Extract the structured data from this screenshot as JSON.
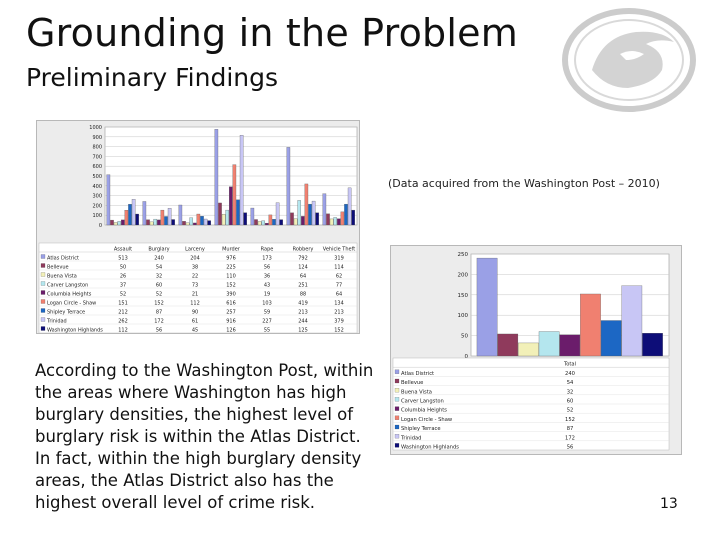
{
  "slide": {
    "title": "Grounding in the Problem",
    "subtitle": "Preliminary Findings",
    "source_note": "(Data acquired from the Washington Post – 2010)",
    "body": "According to the Washington Post, within the areas where Washington has high burglary densities, the highest level of burglary risk is within the Atlas District. In fact, within the high burglary density areas, the Atlas District also has the highest overall level of crime risk.",
    "page_number": "13"
  },
  "colors": {
    "neighborhoods": [
      "#9aa0e6",
      "#8f3a5c",
      "#f2f0b8",
      "#b4e6ee",
      "#6b1c6b",
      "#f08070",
      "#1c67c4",
      "#c8c6f5",
      "#0d0d78"
    ]
  },
  "chart_data": [
    {
      "type": "bar",
      "categories": [
        "Assault",
        "Burglary",
        "Larceny",
        "Murder",
        "Rape",
        "Robbery",
        "Vehicle Theft"
      ],
      "ylim": [
        0,
        1000
      ],
      "yticks": [
        0,
        100,
        200,
        300,
        400,
        500,
        600,
        700,
        800,
        900,
        1000
      ],
      "series": [
        {
          "name": "Atlas District",
          "values": [
            513,
            240,
            204,
            976,
            173,
            792,
            319
          ]
        },
        {
          "name": "Bellevue",
          "values": [
            50,
            54,
            38,
            225,
            56,
            124,
            114
          ]
        },
        {
          "name": "Buena Vista",
          "values": [
            26,
            32,
            22,
            110,
            36,
            64,
            62
          ]
        },
        {
          "name": "Carver Langston",
          "values": [
            37,
            60,
            73,
            152,
            43,
            251,
            77
          ]
        },
        {
          "name": "Columbia Heights",
          "values": [
            52,
            52,
            21,
            390,
            19,
            88,
            64
          ]
        },
        {
          "name": "Logan Circle - Shaw",
          "values": [
            151,
            152,
            112,
            616,
            103,
            419,
            134
          ]
        },
        {
          "name": "Shipley Terrace",
          "values": [
            212,
            87,
            90,
            257,
            59,
            213,
            213
          ]
        },
        {
          "name": "Trinidad",
          "values": [
            262,
            172,
            61,
            916,
            227,
            244,
            379
          ]
        },
        {
          "name": "Washington Highlands",
          "values": [
            112,
            56,
            45,
            126,
            55,
            125,
            152
          ]
        }
      ]
    },
    {
      "type": "bar",
      "categories": [
        "Total"
      ],
      "ylim": [
        0,
        250
      ],
      "yticks": [
        0,
        50,
        100,
        150,
        200,
        250
      ],
      "series": [
        {
          "name": "Atlas District",
          "values": [
            240
          ]
        },
        {
          "name": "Bellevue",
          "values": [
            54
          ]
        },
        {
          "name": "Buena Vista",
          "values": [
            32
          ]
        },
        {
          "name": "Carver Langston",
          "values": [
            60
          ]
        },
        {
          "name": "Columbia Heights",
          "values": [
            52
          ]
        },
        {
          "name": "Logan Circle - Shaw",
          "values": [
            152
          ]
        },
        {
          "name": "Shipley Terrace",
          "values": [
            87
          ]
        },
        {
          "name": "Trinidad",
          "values": [
            172
          ]
        },
        {
          "name": "Washington Highlands",
          "values": [
            56
          ]
        }
      ]
    }
  ]
}
